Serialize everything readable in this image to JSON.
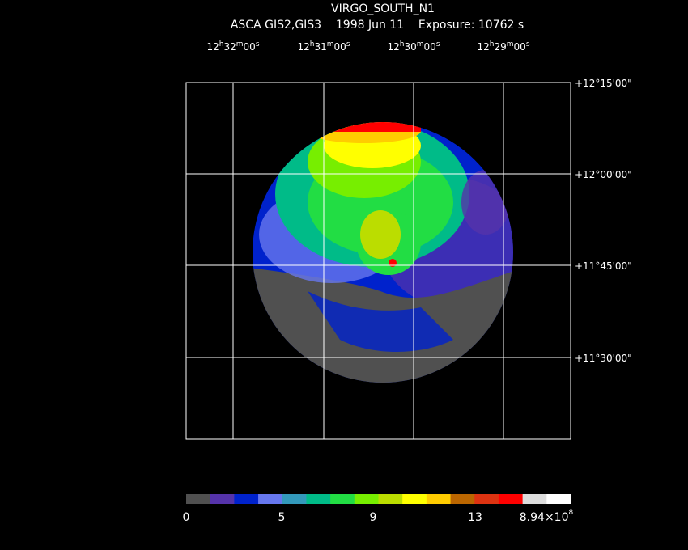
{
  "header": {
    "title": "VIRGO_SOUTH_N1",
    "subtitle": "ASCA GIS2,GIS3    1998 Jun 11    Exposure: 10762 s"
  },
  "ra_labels": [
    [
      "12",
      "h",
      "32",
      "m",
      "00",
      "s"
    ],
    [
      "12",
      "h",
      "31",
      "m",
      "00",
      "s"
    ],
    [
      "12",
      "h",
      "30",
      "m",
      "00",
      "s"
    ],
    [
      "12",
      "h",
      "29",
      "m",
      "00",
      "s"
    ]
  ],
  "dec_labels": [
    "+12°15'00\"",
    "+12°00'00\"",
    "+11°45'00\"",
    "+11°30'00\""
  ],
  "colorbar": {
    "colors": [
      "#505050",
      "#5533aa",
      "#0022cc",
      "#6677ee",
      "#3399bb",
      "#00bb88",
      "#22dd44",
      "#77ee00",
      "#bbdd00",
      "#ffff00",
      "#ffcc00",
      "#bb6600",
      "#dd3311",
      "#ff0000",
      "#dddddd",
      "#ffffff"
    ],
    "labels": [
      [
        "0"
      ],
      [
        "5"
      ],
      [
        "9"
      ],
      [
        "13"
      ],
      [
        "8.94×10",
        "8"
      ]
    ]
  }
}
